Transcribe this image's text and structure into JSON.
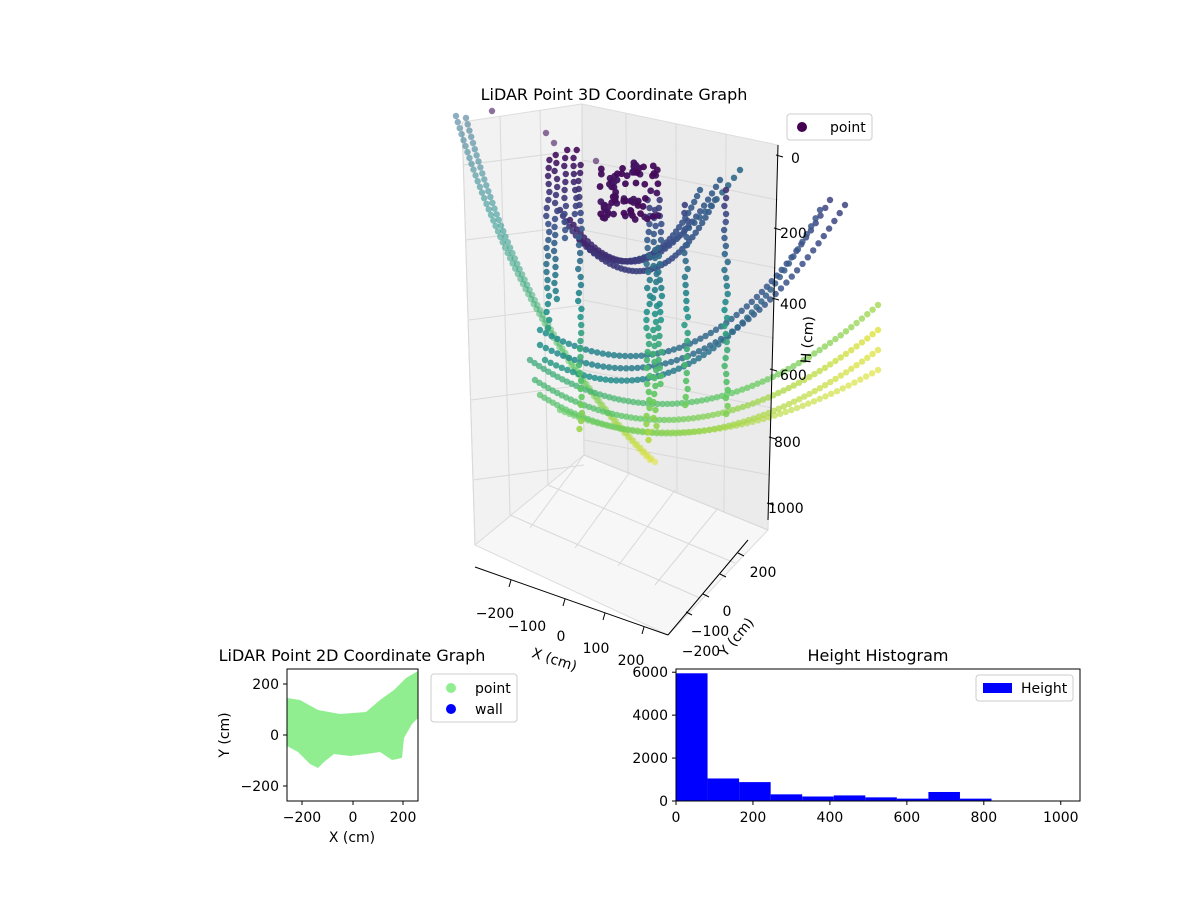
{
  "chart_data": [
    {
      "type": "scatter",
      "projection": "3d",
      "title": "LiDAR Point 3D Coordinate Graph",
      "xlabel": "X (cm)",
      "ylabel": "Y (cm)",
      "zlabel": "H (cm)",
      "x_ticks": [
        "−200",
        "−100",
        "0",
        "100",
        "200"
      ],
      "y_ticks": [
        "−200",
        "−100",
        "0",
        "200"
      ],
      "z_ticks": [
        "0",
        "200",
        "400",
        "600",
        "800",
        "1000"
      ],
      "zlim": [
        0,
        1000
      ],
      "z_inverted": true,
      "colormap": "viridis",
      "legend": {
        "position": "top-right",
        "entries": [
          {
            "label": "point",
            "color": "#440154"
          }
        ]
      },
      "point_curves_note_hidden": null
    },
    {
      "type": "scatter",
      "title": "LiDAR Point 2D Coordinate Graph",
      "xlabel": "X (cm)",
      "ylabel": "Y (cm)",
      "x_ticks": [
        "−200",
        "0",
        "200"
      ],
      "y_ticks": [
        "200",
        "0",
        "−200"
      ],
      "xlim": [
        -260,
        260
      ],
      "ylim": [
        -260,
        260
      ],
      "legend": {
        "position": "right",
        "entries": [
          {
            "label": "point",
            "color": "#90ee90"
          },
          {
            "label": "wall",
            "color": "#0000ff"
          }
        ]
      }
    },
    {
      "type": "bar",
      "title": "Height Histogram",
      "xlabel": "",
      "ylabel": "",
      "x_ticks": [
        "0",
        "200",
        "400",
        "600",
        "800",
        "1000"
      ],
      "y_ticks": [
        "0",
        "2000",
        "4000",
        "6000"
      ],
      "xlim": [
        0,
        1050
      ],
      "ylim": [
        0,
        6150
      ],
      "bin_edges": [
        0,
        82,
        164,
        246,
        328,
        410,
        492,
        574,
        656,
        738,
        820
      ],
      "values": [
        5950,
        1050,
        880,
        310,
        210,
        260,
        170,
        110,
        420,
        110
      ],
      "color": "#0000ff",
      "legend": {
        "position": "top-right",
        "entries": [
          {
            "label": "Height",
            "color": "#0000ff"
          }
        ]
      }
    }
  ]
}
